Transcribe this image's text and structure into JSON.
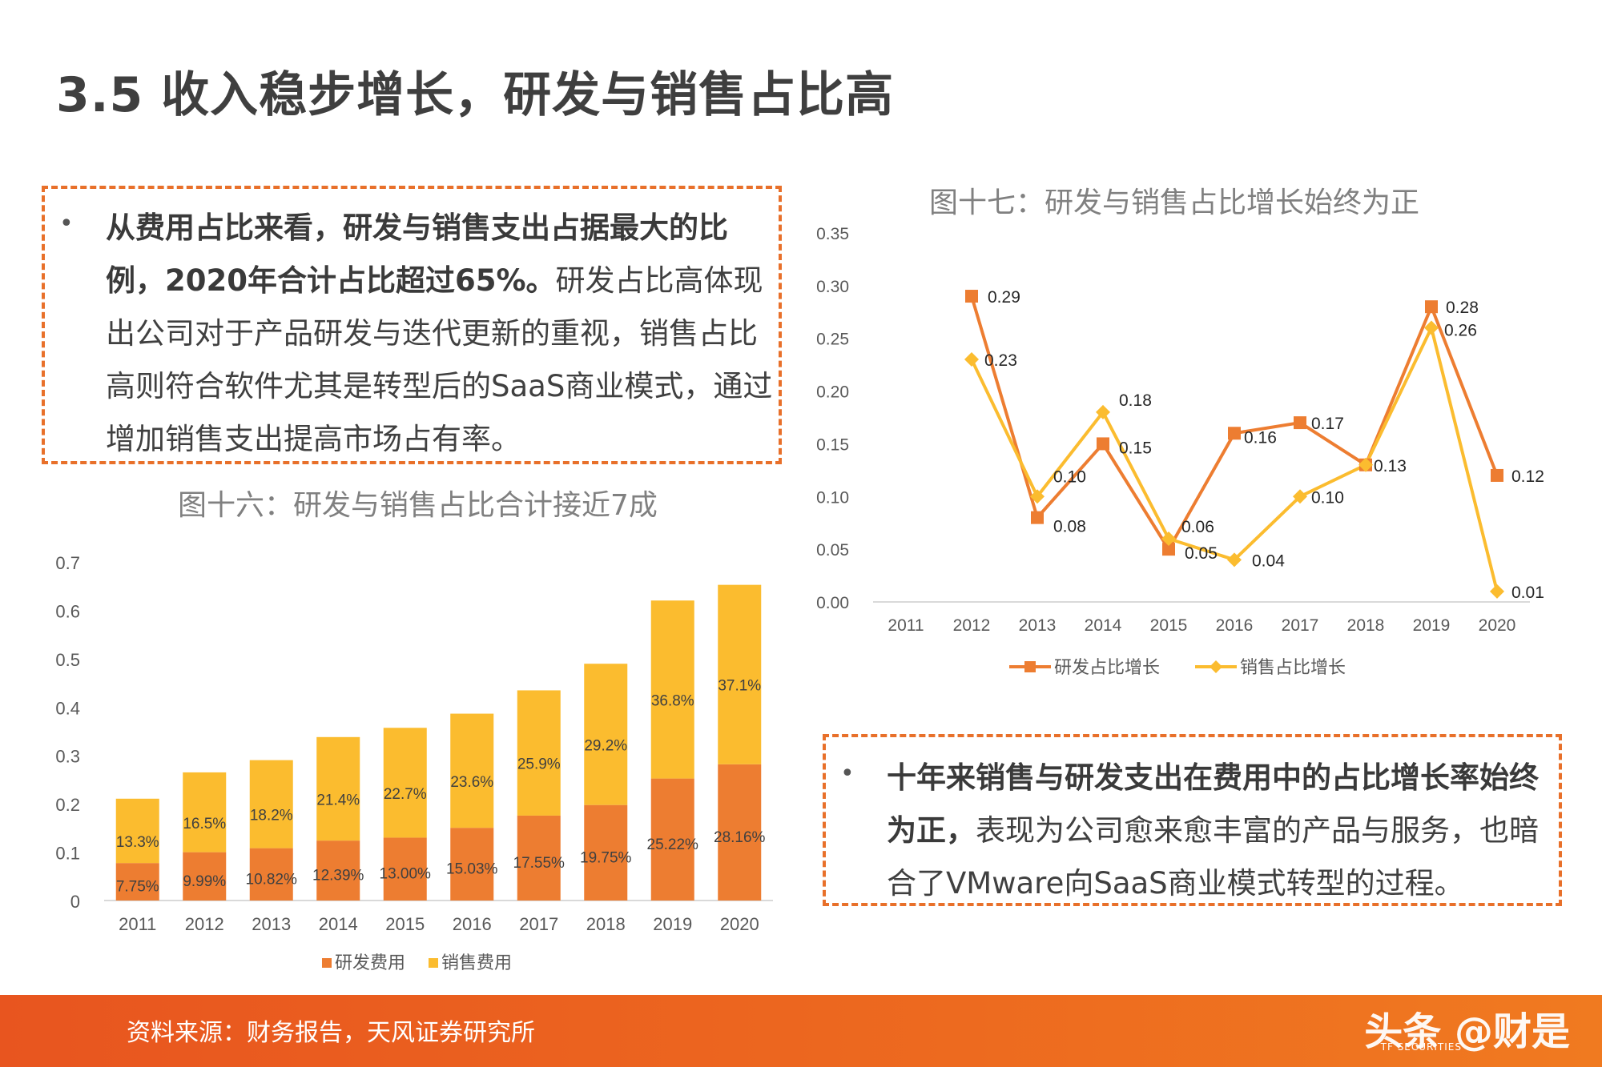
{
  "title": "3.5 收入稳步增长，研发与销售占比高",
  "box1": {
    "bullet": "•",
    "bold": "从费用占比来看，研发与销售支出占据最大的比例，2020年合计占比超过65%。",
    "rest": "研发占比高体现出公司对于产品研发与迭代更新的重视，销售占比高则符合软件尤其是转型后的SaaS商业模式，通过增加销售支出提高市场占有率。"
  },
  "box2": {
    "bullet": "•",
    "bold": "十年来销售与研发支出在费用中的占比增长率始终为正，",
    "rest": "表现为公司愈来愈丰富的产品与服务，也暗合了VMware向SaaS商业模式转型的过程。"
  },
  "chart1_title": "图十六：研发与销售占比合计接近7成",
  "chart2_title": "图十七：研发与销售占比增长始终为正",
  "footer": {
    "source": "资料来源：财务报告，天风证券研究所",
    "watermark": "头条 @财是",
    "logo_sub": "TF SECURITIES"
  },
  "chart_data": [
    {
      "type": "bar",
      "stacked": true,
      "title": "图十六：研发与销售占比合计接近7成",
      "categories": [
        "2011",
        "2012",
        "2013",
        "2014",
        "2015",
        "2016",
        "2017",
        "2018",
        "2019",
        "2020"
      ],
      "series": [
        {
          "name": "研发费用",
          "color": "#ed7d31",
          "values": [
            0.0775,
            0.0999,
            0.1082,
            0.1239,
            0.13,
            0.1503,
            0.1755,
            0.1975,
            0.2522,
            0.2816
          ],
          "labels": [
            "7.75%",
            "9.99%",
            "10.82%",
            "12.39%",
            "13.00%",
            "15.03%",
            "17.55%",
            "19.75%",
            "25.22%",
            "28.16%"
          ]
        },
        {
          "name": "销售费用",
          "color": "#fbbc2f",
          "values": [
            0.133,
            0.165,
            0.182,
            0.214,
            0.227,
            0.236,
            0.259,
            0.292,
            0.368,
            0.371
          ],
          "labels": [
            "13.3%",
            "16.5%",
            "18.2%",
            "21.4%",
            "22.7%",
            "23.6%",
            "25.9%",
            "29.2%",
            "36.8%",
            "37.1%"
          ]
        }
      ],
      "yticks": [
        "0",
        "0.1",
        "0.2",
        "0.3",
        "0.4",
        "0.5",
        "0.6",
        "0.7"
      ],
      "ylim": [
        0,
        0.7
      ],
      "legend": "bottom"
    },
    {
      "type": "line",
      "title": "图十七：研发与销售占比增长始终为正",
      "categories": [
        "2011",
        "2012",
        "2013",
        "2014",
        "2015",
        "2016",
        "2017",
        "2018",
        "2019",
        "2020"
      ],
      "series": [
        {
          "name": "研发占比增长",
          "color": "#ed7d31",
          "marker": "square",
          "values": [
            null,
            0.29,
            0.08,
            0.15,
            0.05,
            0.16,
            0.17,
            0.13,
            0.28,
            0.12
          ],
          "labels": [
            "",
            "0.29",
            "0.08",
            "0.15",
            "0.05",
            "0.16",
            "0.17",
            "0.13",
            "0.28",
            "0.12"
          ]
        },
        {
          "name": "销售占比增长",
          "color": "#fbbc2f",
          "marker": "diamond",
          "values": [
            null,
            0.23,
            0.1,
            0.18,
            0.06,
            0.04,
            0.1,
            0.13,
            0.26,
            0.01
          ],
          "labels": [
            "",
            "0.23",
            "0.10",
            "0.18",
            "0.06",
            "0.04",
            "0.10",
            "",
            "0.26",
            "0.01"
          ]
        }
      ],
      "yticks": [
        "0.00",
        "0.05",
        "0.10",
        "0.15",
        "0.20",
        "0.25",
        "0.30",
        "0.35"
      ],
      "ylim": [
        0,
        0.35
      ],
      "legend": "bottom"
    }
  ]
}
